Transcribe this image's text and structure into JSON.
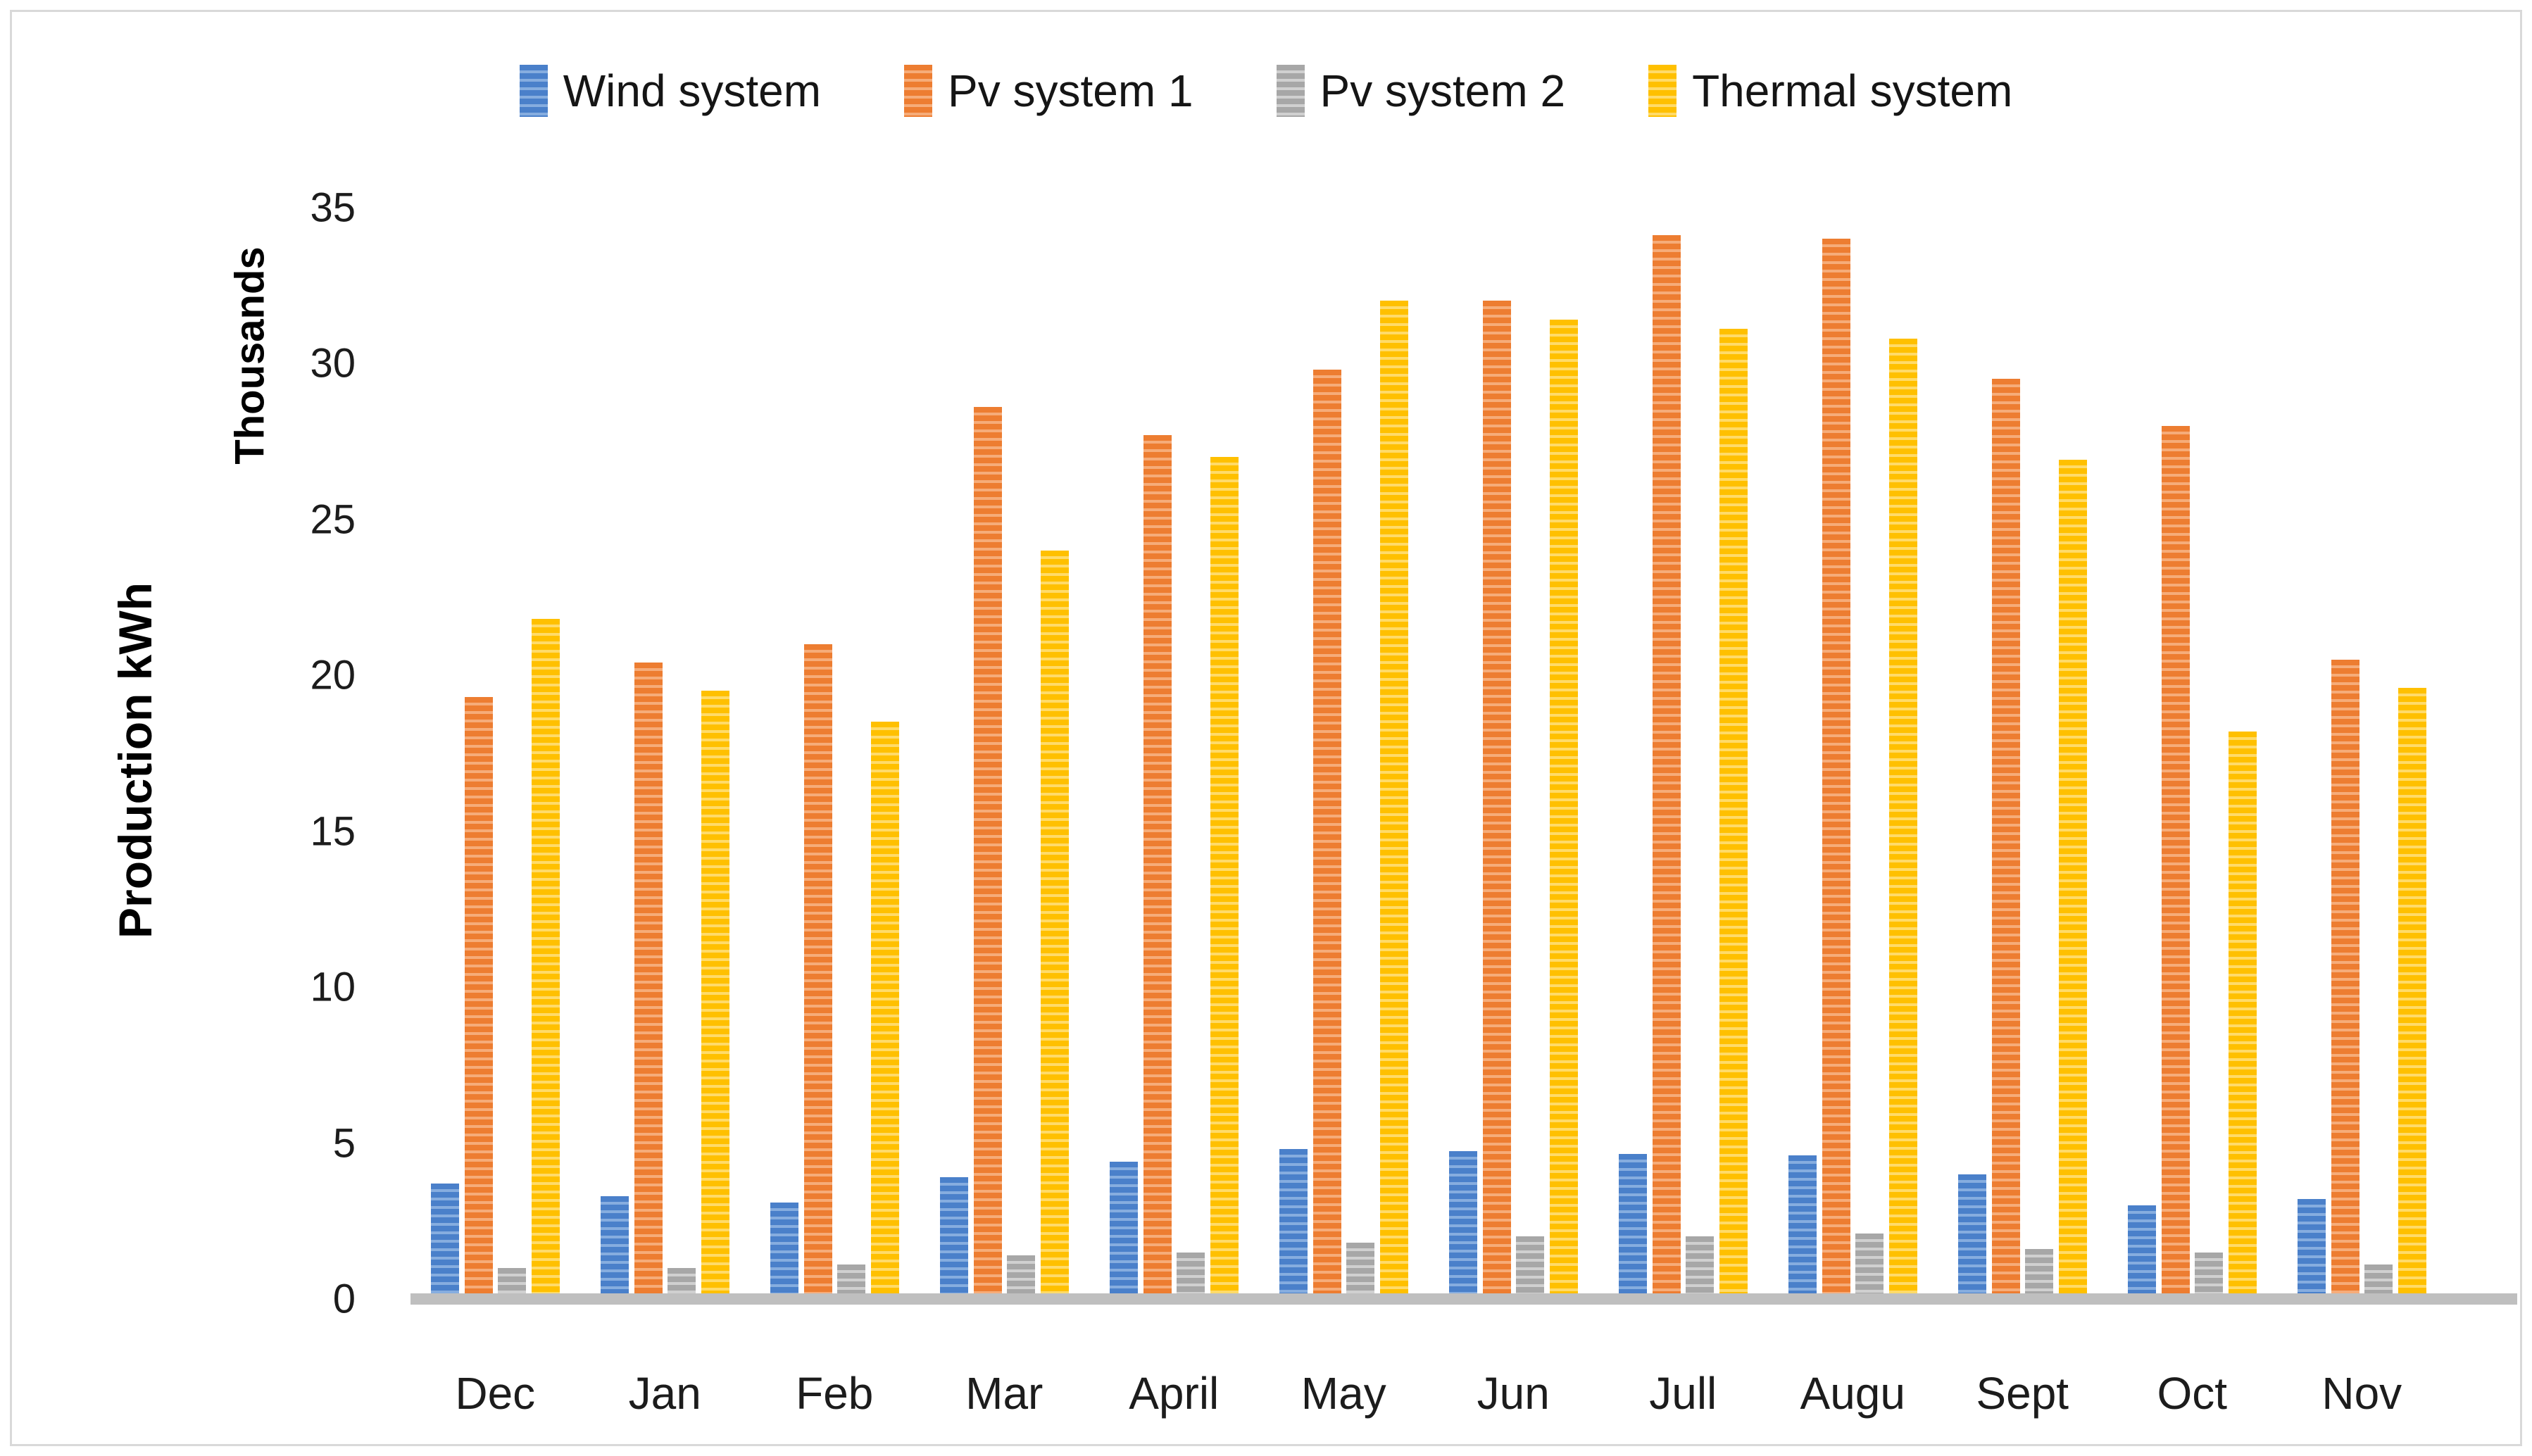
{
  "figure": {
    "background": "#ffffff",
    "border_color": "#d9d9d9",
    "baseline_color": "#bfbfbf"
  },
  "chart_data": {
    "type": "bar",
    "title": "",
    "xlabel": "",
    "ylabel": "Production kWh",
    "y_unit_label": "Thousands",
    "ylim": [
      0,
      35
    ],
    "yticks": [
      0,
      5,
      10,
      15,
      20,
      25,
      30,
      35
    ],
    "grid": false,
    "legend_position": "top",
    "bar_pattern": "horizontal-stripes",
    "categories": [
      "Dec",
      "Jan",
      "Feb",
      "Mar",
      "April",
      "May",
      "Jun",
      "Jull",
      "Augu",
      "Sept",
      "Oct",
      "Nov"
    ],
    "series": [
      {
        "name": "Wind system",
        "color": "#4a80ca",
        "stripe_color": "#86addf",
        "values": [
          3.7,
          3.3,
          3.1,
          3.9,
          4.4,
          4.8,
          4.75,
          4.65,
          4.6,
          4.0,
          3.0,
          3.2
        ]
      },
      {
        "name": "Pv system 1",
        "color": "#ed7d31",
        "stripe_color": "#f6ac79",
        "values": [
          19.3,
          20.4,
          21.0,
          28.6,
          27.7,
          29.8,
          32.0,
          34.1,
          34.0,
          29.5,
          28.0,
          20.5
        ]
      },
      {
        "name": "Pv system 2",
        "color": "#a7a7a7",
        "stripe_color": "#d0d0d0",
        "values": [
          1.0,
          1.0,
          1.1,
          1.4,
          1.5,
          1.8,
          2.0,
          2.0,
          2.1,
          1.6,
          1.5,
          1.1
        ]
      },
      {
        "name": "Thermal system",
        "color": "#ffc000",
        "stripe_color": "#ffdb69",
        "values": [
          21.8,
          19.5,
          18.5,
          24.0,
          27.0,
          32.0,
          31.4,
          31.1,
          30.8,
          26.9,
          18.2,
          19.6
        ]
      }
    ]
  }
}
